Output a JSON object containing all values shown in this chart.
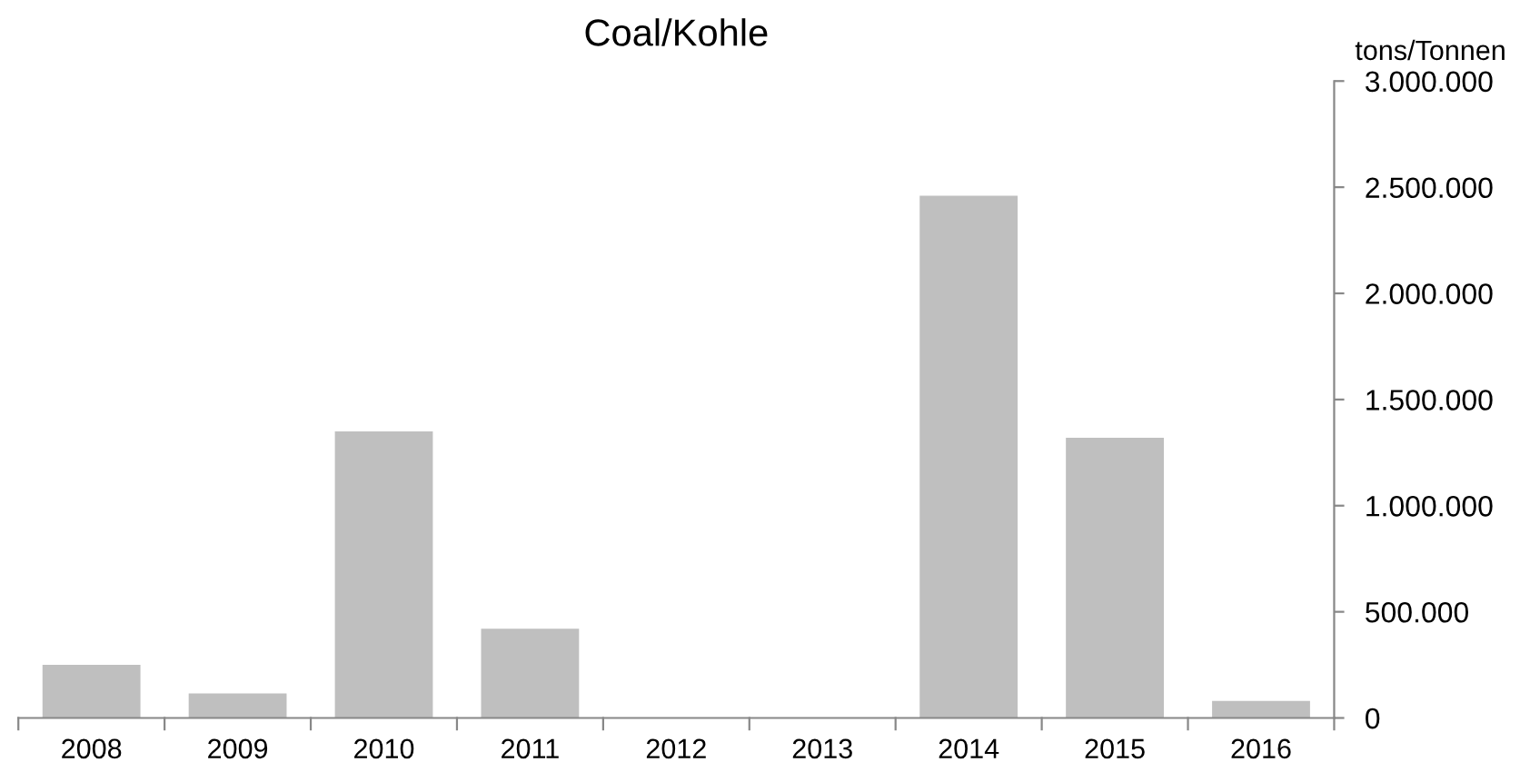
{
  "chart_data": {
    "type": "bar",
    "title": "Coal/Kohle",
    "ylabel": "tons/Tonnen",
    "categories": [
      "2008",
      "2009",
      "2010",
      "2011",
      "2012",
      "2013",
      "2014",
      "2015",
      "2016"
    ],
    "values": [
      250000,
      115000,
      1350000,
      420000,
      0,
      0,
      2460000,
      1320000,
      80000
    ],
    "color": "#bfbfbf",
    "ylim": [
      0,
      3000000
    ],
    "yticks": [
      {
        "value": 0,
        "label": "0"
      },
      {
        "value": 500000,
        "label": "500.000"
      },
      {
        "value": 1000000,
        "label": "1.000.000"
      },
      {
        "value": 1500000,
        "label": "1.500.000"
      },
      {
        "value": 2000000,
        "label": "2.000.000"
      },
      {
        "value": 2500000,
        "label": "2.500.000"
      },
      {
        "value": 3000000,
        "label": "3.000.000"
      }
    ],
    "grid": false
  }
}
